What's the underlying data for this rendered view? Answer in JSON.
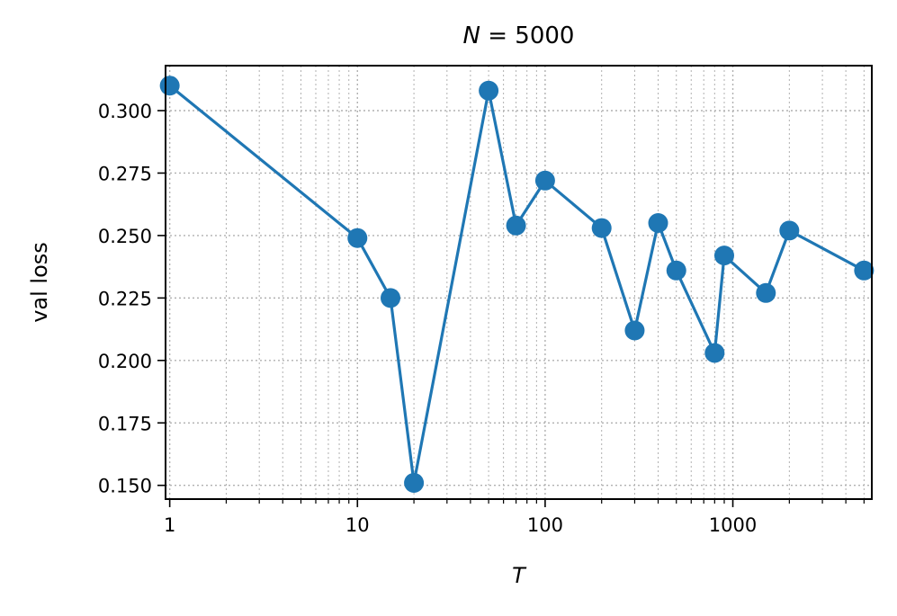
{
  "chart_data": {
    "type": "line",
    "title_italic": "N",
    "title_rest": " = 5000",
    "xlabel": "T",
    "ylabel": "val loss",
    "xscale": "log",
    "xlim": [
      0.95,
      5500
    ],
    "ylim": [
      0.1445,
      0.318
    ],
    "grid": true,
    "x_ticks": [
      1,
      10,
      100,
      1000
    ],
    "x_tick_labels": [
      "1",
      "10",
      "100",
      "1000"
    ],
    "y_ticks": [
      0.15,
      0.175,
      0.2,
      0.225,
      0.25,
      0.275,
      0.3
    ],
    "y_tick_labels": [
      "0.150",
      "0.175",
      "0.200",
      "0.225",
      "0.250",
      "0.275",
      "0.300"
    ],
    "series": [
      {
        "color": "#1f77b4",
        "marker": "circle",
        "x": [
          1,
          10,
          15,
          20,
          50,
          70,
          100,
          200,
          300,
          400,
          500,
          800,
          900,
          1500,
          2000,
          5000
        ],
        "y": [
          0.31,
          0.249,
          0.225,
          0.151,
          0.308,
          0.254,
          0.272,
          0.253,
          0.212,
          0.255,
          0.236,
          0.203,
          0.242,
          0.227,
          0.252,
          0.236
        ]
      }
    ]
  }
}
